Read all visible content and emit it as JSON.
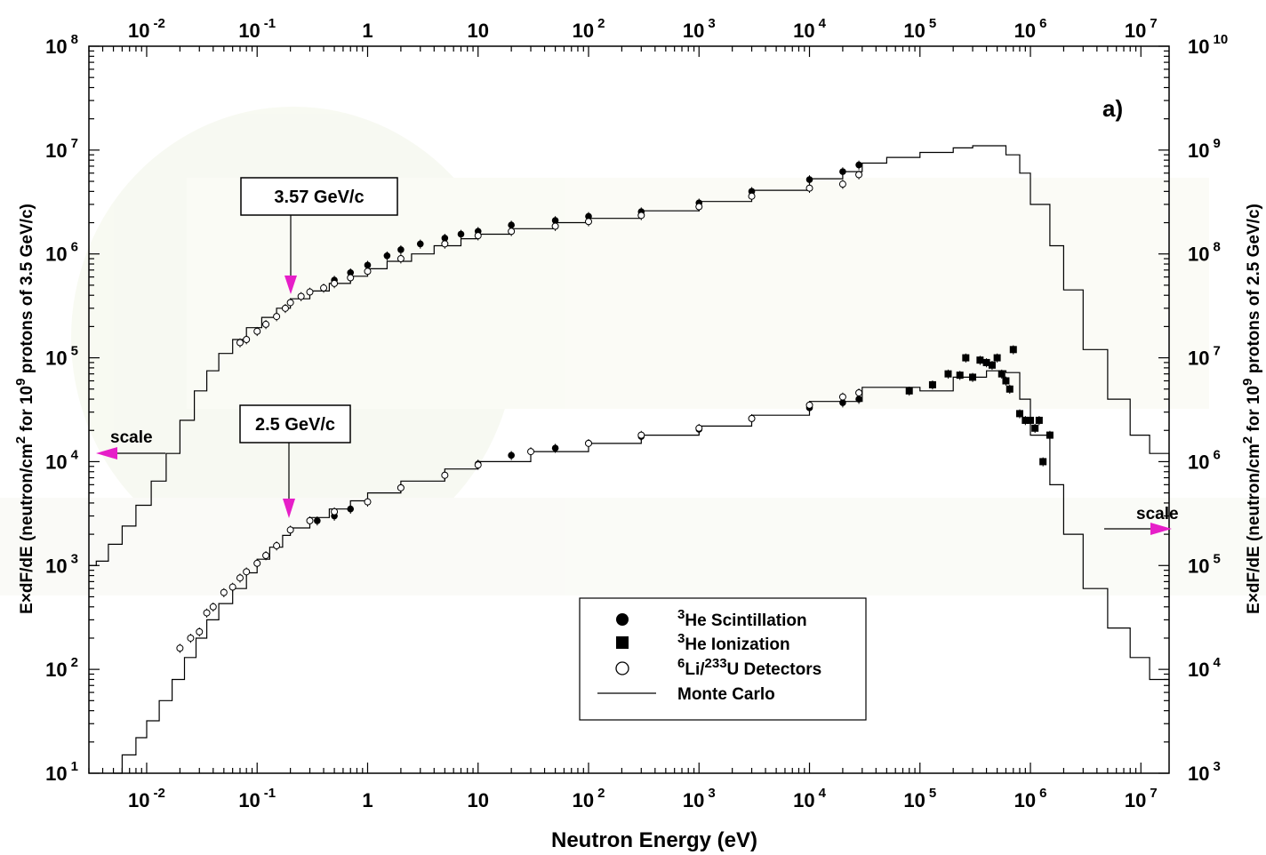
{
  "chart_data": {
    "type": "scatter",
    "panel_label": "a)",
    "x_axis": {
      "label": "Neutron Energy (eV)",
      "scale": "log",
      "range": [
        0.003,
        18000000.0
      ],
      "ticks": [
        {
          "value": 0.01,
          "base": "10",
          "exp": "-2"
        },
        {
          "value": 0.1,
          "base": "10",
          "exp": "-1"
        },
        {
          "value": 1,
          "base": "1",
          "exp": ""
        },
        {
          "value": 10,
          "base": "10",
          "exp": ""
        },
        {
          "value": 100,
          "base": "10",
          "exp": "2"
        },
        {
          "value": 1000,
          "base": "10",
          "exp": "3"
        },
        {
          "value": 10000,
          "base": "10",
          "exp": "4"
        },
        {
          "value": 100000,
          "base": "10",
          "exp": "5"
        },
        {
          "value": 1000000,
          "base": "10",
          "exp": "6"
        },
        {
          "value": 10000000,
          "base": "10",
          "exp": "7"
        }
      ]
    },
    "y_axis_left": {
      "label_pre": "E×dF/dE  (neutron/cm",
      "label_sup1": "2",
      "label_mid": " for 10",
      "label_sup2": "9",
      "label_post": " protons of 3.5 GeV/c)",
      "scale": "log",
      "range": [
        10,
        100000000.0
      ],
      "ticks": [
        {
          "value": 10,
          "base": "10",
          "exp": "1"
        },
        {
          "value": 100,
          "base": "10",
          "exp": "2"
        },
        {
          "value": 1000,
          "base": "10",
          "exp": "3"
        },
        {
          "value": 10000,
          "base": "10",
          "exp": "4"
        },
        {
          "value": 100000,
          "base": "10",
          "exp": "5"
        },
        {
          "value": 1000000,
          "base": "10",
          "exp": "6"
        },
        {
          "value": 10000000,
          "base": "10",
          "exp": "7"
        },
        {
          "value": 100000000,
          "base": "10",
          "exp": "8"
        }
      ]
    },
    "y_axis_right": {
      "label_pre": "E×dF/dE  (neutron/cm",
      "label_sup1": "2",
      "label_mid": " for 10",
      "label_sup2": "9",
      "label_post": " protons of 2.5 GeV/c)",
      "scale": "log",
      "range": [
        1000,
        10000000000.0
      ],
      "ticks": [
        {
          "value": 1000,
          "base": "10",
          "exp": "3"
        },
        {
          "value": 10000,
          "base": "10",
          "exp": "4"
        },
        {
          "value": 100000,
          "base": "10",
          "exp": "5"
        },
        {
          "value": 1000000,
          "base": "10",
          "exp": "6"
        },
        {
          "value": 10000000,
          "base": "10",
          "exp": "7"
        },
        {
          "value": 100000000,
          "base": "10",
          "exp": "8"
        },
        {
          "value": 1000000000,
          "base": "10",
          "exp": "9"
        },
        {
          "value": 10000000000,
          "base": "10",
          "exp": "10"
        }
      ]
    },
    "annotations": {
      "box_upper": "3.57 GeV/c",
      "box_lower": "2.5 GeV/c",
      "scale_left": "scale",
      "scale_right": "scale"
    },
    "legend": {
      "placement": "bottom-center",
      "items": [
        {
          "marker": "filled-circle",
          "sup": "3",
          "text": "He Scintillation"
        },
        {
          "marker": "filled-square",
          "sup": "3",
          "text": "He Ionization"
        },
        {
          "marker": "open-circle",
          "sup": "6",
          "text": "Li/",
          "sup2": "233",
          "text2": "U Detectors"
        },
        {
          "marker": "line",
          "sup": "",
          "text": "Monte Carlo"
        }
      ]
    },
    "series": [
      {
        "name": "Monte Carlo",
        "dataset": "3.57 GeV/c",
        "style": "step",
        "x": [
          0.003,
          0.0035,
          0.0045,
          0.006,
          0.008,
          0.011,
          0.015,
          0.02,
          0.027,
          0.035,
          0.045,
          0.06,
          0.08,
          0.11,
          0.15,
          0.2,
          0.3,
          0.45,
          0.7,
          1,
          1.5,
          2.5,
          4,
          7,
          10,
          20,
          50,
          100,
          300,
          1000,
          3000,
          10000,
          20000,
          30000,
          50000,
          100000,
          200000,
          300000,
          500000,
          600000,
          800000,
          1000000,
          1500000,
          2000000,
          3000000,
          5000000,
          8000000,
          12000000,
          18000000
        ],
        "y": [
          1000,
          1100,
          1600,
          2400,
          3800,
          6500,
          12000,
          25000,
          48000,
          75000,
          110000,
          150000,
          195000,
          245000,
          300000,
          370000,
          440000,
          520000,
          610000,
          720000,
          850000,
          1000000,
          1200000,
          1400000,
          1550000,
          1750000,
          2000000,
          2200000,
          2600000,
          3200000,
          4100000,
          5300000,
          6200000,
          7500000,
          8500000,
          9500000,
          10500000,
          11000000,
          11000000,
          9000000,
          6000000,
          3000000,
          1200000,
          450000,
          120000,
          40000,
          18000,
          12000,
          10000
        ]
      },
      {
        "name": "3He Scintillation",
        "dataset": "3.57 GeV/c",
        "x": [
          0.5,
          0.7,
          1,
          1.5,
          2,
          3,
          5,
          7,
          10,
          20,
          50,
          100,
          300,
          1000,
          3000,
          10000,
          20000,
          28000
        ],
        "y": [
          560000,
          660000,
          780000,
          960000,
          1100000,
          1250000,
          1420000,
          1550000,
          1650000,
          1900000,
          2100000,
          2300000,
          2550000,
          3100000,
          4000000,
          5200000,
          6200000,
          7200000
        ]
      },
      {
        "name": "6Li/233U Detectors",
        "dataset": "3.57 GeV/c",
        "x": [
          0.07,
          0.08,
          0.1,
          0.12,
          0.15,
          0.18,
          0.2,
          0.25,
          0.3,
          0.4,
          0.5,
          0.7,
          1,
          2,
          5,
          10,
          20,
          50,
          100,
          300,
          1000,
          3000,
          10000,
          20000,
          28000
        ],
        "y": [
          140000,
          150000,
          180000,
          210000,
          250000,
          300000,
          340000,
          390000,
          430000,
          470000,
          520000,
          590000,
          680000,
          900000,
          1250000,
          1500000,
          1650000,
          1850000,
          2050000,
          2350000,
          2850000,
          3600000,
          4300000,
          4700000,
          5800000
        ]
      },
      {
        "name": "Monte Carlo",
        "dataset": "2.5 GeV/c",
        "style": "step",
        "x": [
          0.005,
          0.006,
          0.008,
          0.01,
          0.013,
          0.017,
          0.022,
          0.028,
          0.035,
          0.045,
          0.06,
          0.08,
          0.1,
          0.13,
          0.17,
          0.2,
          0.3,
          0.45,
          0.7,
          1,
          2,
          5,
          10,
          30,
          100,
          300,
          1000,
          3000,
          10000,
          30000,
          100000,
          200000,
          400000,
          600000,
          800000,
          1000000,
          1500000,
          2000000,
          3000000,
          5000000,
          8000000,
          12000000,
          18000000
        ],
        "y": [
          9,
          15,
          22,
          32,
          50,
          80,
          130,
          200,
          300,
          430,
          600,
          850,
          1150,
          1500,
          1950,
          2300,
          2900,
          3500,
          4200,
          5000,
          6500,
          8500,
          10000,
          12500,
          15000,
          18000,
          22000,
          28000,
          38000,
          52000,
          48000,
          65000,
          75000,
          72000,
          40000,
          18000,
          6000,
          2000,
          600,
          250,
          130,
          80,
          70
        ]
      },
      {
        "name": "3He Scintillation",
        "dataset": "2.5 GeV/c",
        "x": [
          0.35,
          0.5,
          0.7,
          1,
          2,
          5,
          10,
          20,
          50,
          100,
          300,
          1000,
          3000,
          10000,
          20000,
          28000
        ],
        "y": [
          2700,
          3000,
          3500,
          4100,
          5600,
          7400,
          9500,
          11500,
          13500,
          15000,
          17500,
          20500,
          26000,
          33000,
          37000,
          40000
        ]
      },
      {
        "name": "3He Ionization",
        "dataset": "2.5 GeV/c",
        "x": [
          80000,
          130000,
          180000,
          230000,
          260000,
          300000,
          350000,
          400000,
          450000,
          500000,
          550000,
          600000,
          650000,
          700000,
          800000,
          900000,
          1000000,
          1100000,
          1200000,
          1300000,
          1500000
        ],
        "y": [
          48000,
          55000,
          70000,
          68000,
          100000,
          65000,
          95000,
          90000,
          85000,
          100000,
          70000,
          60000,
          50000,
          120000,
          29000,
          25000,
          25000,
          21000,
          25000,
          10000,
          18000
        ]
      },
      {
        "name": "6Li/233U Detectors",
        "dataset": "2.5 GeV/c",
        "x": [
          0.02,
          0.025,
          0.03,
          0.035,
          0.04,
          0.05,
          0.06,
          0.07,
          0.08,
          0.1,
          0.12,
          0.15,
          0.2,
          0.3,
          0.5,
          1,
          2,
          5,
          10,
          30,
          100,
          300,
          1000,
          3000,
          10000,
          20000,
          28000
        ],
        "y": [
          160,
          200,
          230,
          350,
          400,
          550,
          620,
          760,
          870,
          1050,
          1250,
          1550,
          2200,
          2700,
          3300,
          4100,
          5600,
          7400,
          9300,
          12500,
          15000,
          18000,
          21000,
          26000,
          35000,
          42000,
          46000
        ]
      }
    ]
  }
}
